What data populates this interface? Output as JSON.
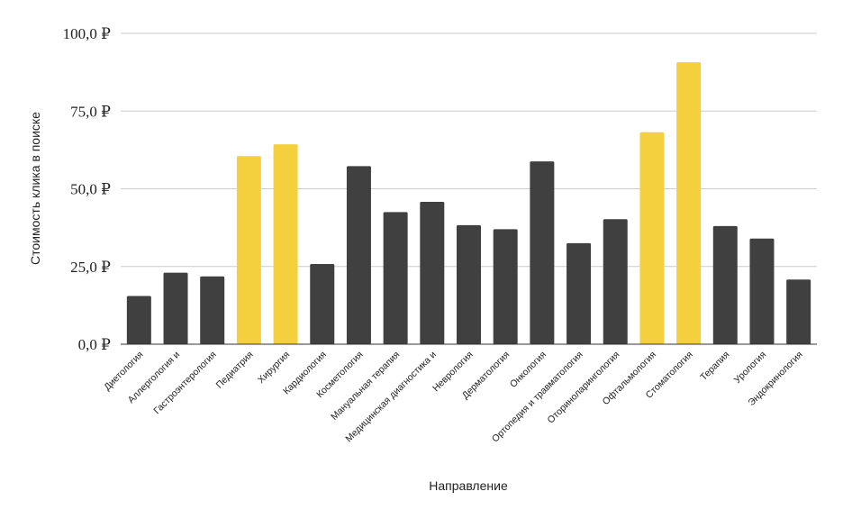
{
  "chart_data": {
    "type": "bar",
    "title": "",
    "xlabel": "Направление",
    "ylabel": "Стоимость клика в поиске",
    "ylim": [
      0,
      100
    ],
    "yticks": [
      0,
      25,
      50,
      75,
      100
    ],
    "ytick_labels": [
      "0,0 ₽",
      "25,0 ₽",
      "50,0 ₽",
      "75,0 ₽",
      "100,0 ₽"
    ],
    "grid": true,
    "legend": "none",
    "colors": {
      "default": "#404040",
      "highlight": "#f4d03f"
    },
    "categories": [
      "Диетология",
      "Аллергология и",
      "Гастроэнтерология",
      "Педиатрия",
      "Хирургия",
      "Кардиология",
      "Косметология",
      "Мануальная терапия",
      "Медицинская диагностика и",
      "Неврология",
      "Дерматология",
      "Онкология",
      "Ортопедия и травматология",
      "Оториноларингология",
      "Офтальмология",
      "Стоматология",
      "Терапия",
      "Урология",
      "Эндокринология"
    ],
    "values": [
      15.5,
      23,
      21.8,
      60.5,
      64.3,
      25.8,
      57.3,
      42.5,
      45.8,
      38.3,
      37,
      58.8,
      32.5,
      40.2,
      68.2,
      90.7,
      38,
      34,
      20.8
    ],
    "highlighted": [
      false,
      false,
      false,
      true,
      true,
      false,
      false,
      false,
      false,
      false,
      false,
      false,
      false,
      false,
      true,
      true,
      false,
      false,
      false
    ]
  }
}
